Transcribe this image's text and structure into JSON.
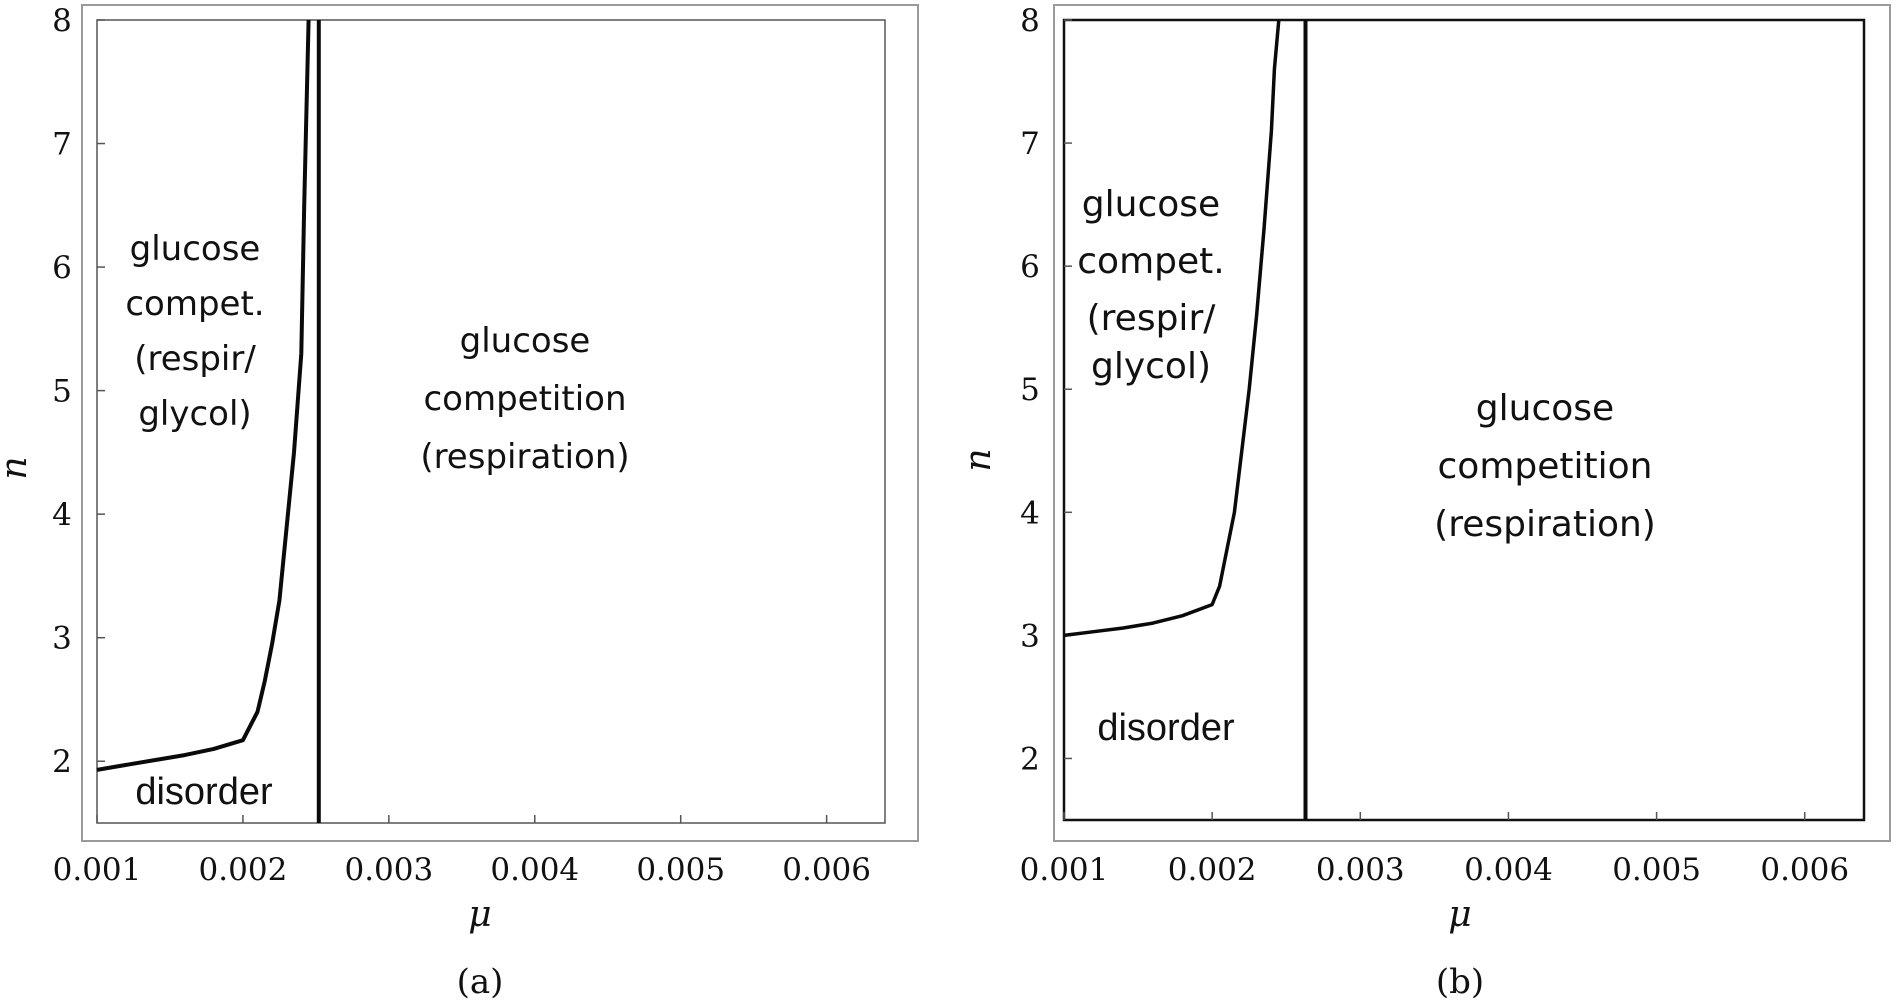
{
  "chart_data": [
    {
      "type": "line",
      "caption": "(a)",
      "xlabel": "μ",
      "ylabel": "n",
      "xlim": [
        0.001,
        0.0064
      ],
      "ylim": [
        1.5,
        8
      ],
      "xticks": [
        "0.001",
        "0.002",
        "0.003",
        "0.004",
        "0.005",
        "0.006"
      ],
      "yticks": [
        "2",
        "3",
        "4",
        "5",
        "6",
        "7",
        "8"
      ],
      "series": [
        {
          "x": [
            0.001,
            0.0012,
            0.0014,
            0.0016,
            0.0018,
            0.002,
            0.0021,
            0.00215,
            0.0022,
            0.00225,
            0.0023,
            0.00235,
            0.0024,
            0.00242,
            0.00245
          ],
          "y": [
            1.93,
            1.97,
            2.01,
            2.05,
            2.1,
            2.17,
            2.4,
            2.65,
            2.95,
            3.3,
            3.9,
            4.5,
            5.3,
            6.5,
            8.0
          ]
        },
        {
          "x": [
            0.00252,
            0.00252
          ],
          "y": [
            1.5,
            8.0
          ]
        }
      ],
      "annotations": [
        {
          "lines": [
            "glucose",
            "compet.",
            "(respir/",
            "glycol)"
          ]
        },
        {
          "lines": [
            "glucose",
            "competition",
            "(respiration)"
          ]
        },
        {
          "lines": [
            "disorder"
          ]
        }
      ]
    },
    {
      "type": "line",
      "caption": "(b)",
      "xlabel": "μ",
      "ylabel": "n",
      "xlim": [
        0.001,
        0.0064
      ],
      "ylim": [
        1.5,
        8
      ],
      "xticks": [
        "0.001",
        "0.002",
        "0.003",
        "0.004",
        "0.005",
        "0.006"
      ],
      "yticks": [
        "2",
        "3",
        "4",
        "5",
        "6",
        "7",
        "8"
      ],
      "series": [
        {
          "x": [
            0.001,
            0.0012,
            0.0014,
            0.0016,
            0.0018,
            0.002,
            0.00205,
            0.0021,
            0.00215,
            0.0022,
            0.00225,
            0.0023,
            0.00235,
            0.0024,
            0.00242,
            0.00245
          ],
          "y": [
            3.0,
            3.03,
            3.06,
            3.1,
            3.16,
            3.25,
            3.4,
            3.7,
            4.0,
            4.5,
            5.0,
            5.6,
            6.3,
            7.1,
            7.6,
            8.0
          ]
        },
        {
          "x": [
            0.00263,
            0.00263
          ],
          "y": [
            1.5,
            8.0
          ]
        }
      ],
      "annotations": [
        {
          "lines": [
            "glucose",
            "compet.",
            "(respir/",
            "glycol)"
          ]
        },
        {
          "lines": [
            "glucose",
            "competition",
            "(respiration)"
          ]
        },
        {
          "lines": [
            "disorder"
          ]
        }
      ]
    }
  ]
}
